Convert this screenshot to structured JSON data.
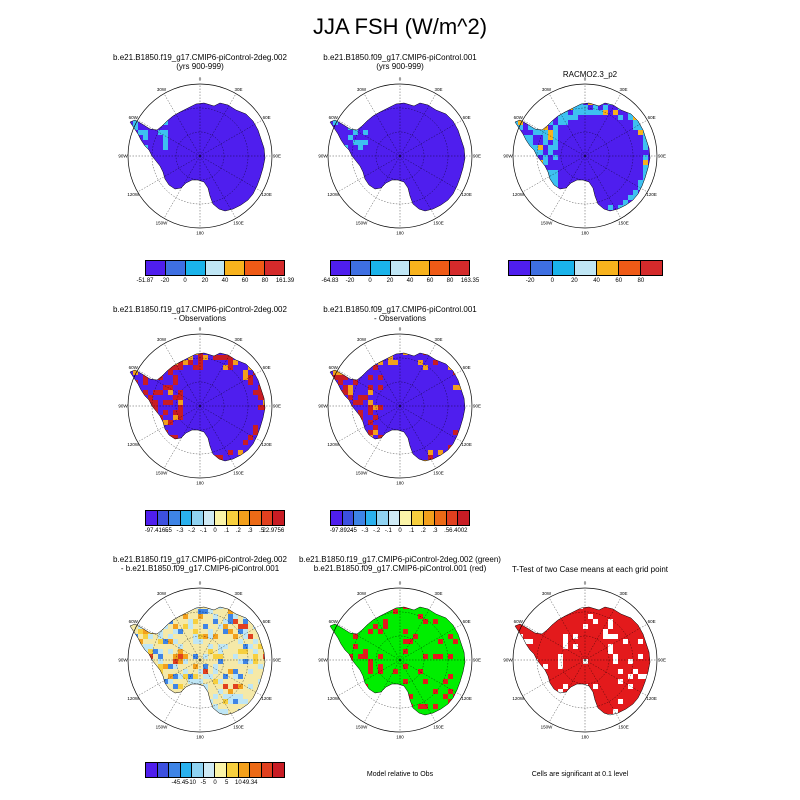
{
  "title": "JJA FSH (W/m^2)",
  "panels": [
    {
      "id": "p1",
      "title": [
        "b.e21.B1850.f19_g17.CMIP6-piControl-2deg.002",
        "(yrs 900-999)"
      ],
      "kind": "abs"
    },
    {
      "id": "p2",
      "title": [
        "b.e21.B1850.f09_g17.CMIP6-piControl.001",
        "(yrs 900-999)"
      ],
      "kind": "abs"
    },
    {
      "id": "p3",
      "title": [
        "RACMO2.3_p2"
      ],
      "kind": "abs"
    },
    {
      "id": "p4",
      "title": [
        "b.e21.B1850.f19_g17.CMIP6-piControl-2deg.002",
        "- Observations"
      ],
      "kind": "diff"
    },
    {
      "id": "p5",
      "title": [
        "b.e21.B1850.f09_g17.CMIP6-piControl.001",
        "- Observations"
      ],
      "kind": "diff"
    },
    {
      "id": "p6",
      "title": [
        "b.e21.B1850.f19_g17.CMIP6-piControl-2deg.002",
        "- b.e21.B1850.f09_g17.CMIP6-piControl.001"
      ],
      "kind": "casediff"
    },
    {
      "id": "p7",
      "title": [
        "b.e21.B1850.f19_g17.CMIP6-piControl-2deg.002 (green)",
        "b.e21.B1850.f09_g17.CMIP6-piControl.001 (red)"
      ],
      "kind": "relobs"
    },
    {
      "id": "p8",
      "title": [
        "T-Test of two Case means at each grid point"
      ],
      "kind": "ttest"
    }
  ],
  "map_labels": {
    "lon_labels": [
      "0",
      "30E",
      "60E",
      "90E",
      "120E",
      "150E",
      "180",
      "150W",
      "120W",
      "90W",
      "60W",
      "30W"
    ]
  },
  "colorbars": {
    "cb1": {
      "labels": [
        "-51.87",
        "-20",
        "0",
        "20",
        "40",
        "60",
        "80",
        "161.39"
      ],
      "colors": [
        "#4f1eee",
        "#3e6fe2",
        "#1ab3ea",
        "#bfe6f5",
        "#f7b21d",
        "#ef5a16",
        "#d42a2b"
      ]
    },
    "cb2": {
      "labels": [
        "-64.83",
        "-20",
        "0",
        "20",
        "40",
        "60",
        "80",
        "163.35"
      ],
      "colors": [
        "#4f1eee",
        "#3e6fe2",
        "#1ab3ea",
        "#bfe6f5",
        "#f7b21d",
        "#ef5a16",
        "#d42a2b"
      ]
    },
    "cb3": {
      "labels": [
        "-20",
        "0",
        "20",
        "40",
        "60",
        "80"
      ],
      "colors": [
        "#4f1eee",
        "#3e6fe2",
        "#1ab3ea",
        "#bfe6f5",
        "#f7b21d",
        "#ef5a16",
        "#d42a2b"
      ]
    },
    "cb4": {
      "labels": [
        "-97.4165",
        "-.5",
        "-.3",
        "-.2",
        "-.1",
        "0",
        ".1",
        ".2",
        ".3",
        ".5",
        "22.9756"
      ],
      "colors": [
        "#4f1eee",
        "#3c50e0",
        "#3e84e6",
        "#2ab1ee",
        "#8fd2f1",
        "#cfeaf5",
        "#fbf4a8",
        "#f7cf3e",
        "#f3a01c",
        "#ec6a16",
        "#e1401f",
        "#c81c24"
      ]
    },
    "cb5": {
      "labels": [
        "-97.8924",
        "-.5",
        "-.3",
        "-.2",
        "-.1",
        "0",
        ".1",
        ".2",
        ".3",
        ".5",
        "6.4002"
      ],
      "colors": [
        "#4f1eee",
        "#3c50e0",
        "#3e84e6",
        "#2ab1ee",
        "#8fd2f1",
        "#cfeaf5",
        "#fbf4a8",
        "#f7cf3e",
        "#f3a01c",
        "#ec6a16",
        "#e1401f",
        "#c81c24"
      ]
    },
    "cb6": {
      "labels": [
        "-45.45",
        "-10",
        "-5",
        "0",
        "5",
        "10",
        "49.34"
      ],
      "colors": [
        "#4f1eee",
        "#3c50e0",
        "#3e84e6",
        "#2ab1ee",
        "#8fd2f1",
        "#cfeaf5",
        "#fbf4a8",
        "#f7cf3e",
        "#f3a01c",
        "#ec6a16",
        "#e1401f",
        "#c81c24"
      ]
    }
  },
  "notes": {
    "model_relative": "Model relative to Obs",
    "significance": "Cells are significant at 0.1 level"
  },
  "colors": {
    "deep_blue": "#4f1eee",
    "light_blue": "#3ec0f0",
    "red": "#e31a1c",
    "green": "#00ee00",
    "tan": "#f5e9a8"
  }
}
